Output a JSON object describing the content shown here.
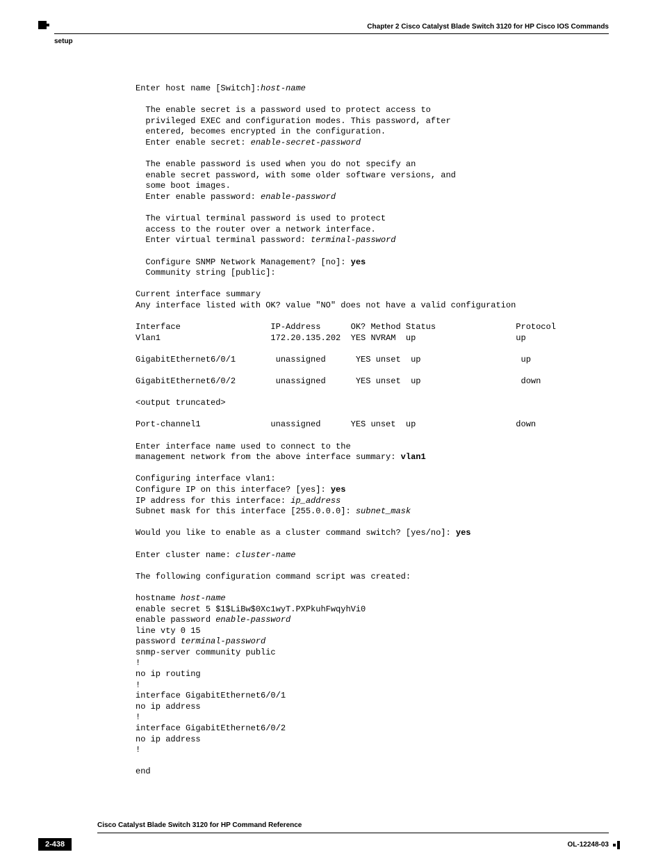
{
  "header": {
    "chapter": "Chapter 2  Cisco Catalyst Blade Switch 3120 for HP Cisco IOS Commands",
    "section": "setup"
  },
  "terminal": {
    "line1_prefix": "Enter host name [Switch]:",
    "line1_italic": "host-name",
    "para1_l1": "  The enable secret is a password used to protect access to",
    "para1_l2": "  privileged EXEC and configuration modes. This password, after",
    "para1_l3": "  entered, becomes encrypted in the configuration.",
    "para1_l4_prefix": "  Enter enable secret: ",
    "para1_l4_italic": "enable-secret-password",
    "para2_l1": "  The enable password is used when you do not specify an",
    "para2_l2": "  enable secret password, with some older software versions, and",
    "para2_l3": "  some boot images.",
    "para2_l4_prefix": "  Enter enable password: ",
    "para2_l4_italic": "enable-password",
    "para3_l1": "  The virtual terminal password is used to protect",
    "para3_l2": "  access to the router over a network interface.",
    "para3_l3_prefix": "  Enter virtual terminal password: ",
    "para3_l3_italic": "terminal-password",
    "snmp_l1_prefix": "  Configure SNMP Network Management? [no]: ",
    "snmp_l1_bold": "yes",
    "snmp_l2": "  Community string [public]: ",
    "summary_l1": "Current interface summary",
    "summary_l2": "Any interface listed with OK? value \"NO\" does not have a valid configuration",
    "table_header": "Interface                  IP-Address      OK? Method Status                Protocol",
    "table_vlan": "Vlan1                      172.20.135.202  YES NVRAM  up                    up",
    "table_ge1": "GigabitEthernet6/0/1        unassigned      YES unset  up                    up",
    "table_ge2": "GigabitEthernet6/0/2        unassigned      YES unset  up                    down",
    "truncated": "<output truncated>",
    "table_pc": "Port-channel1              unassigned      YES unset  up                    down",
    "iface_l1": "Enter interface name used to connect to the",
    "iface_l2_prefix": "management network from the above interface summary: ",
    "iface_l2_bold": "vlan1",
    "cfg_l1": "Configuring interface vlan1:",
    "cfg_l2_prefix": "Configure IP on this interface? [yes]: ",
    "cfg_l2_bold": "yes",
    "cfg_l3_prefix": "IP address for this interface: ",
    "cfg_l3_italic": "ip_address",
    "cfg_l4_prefix": "Subnet mask for this interface [255.0.0.0]: ",
    "cfg_l4_italic": "subnet_mask",
    "cluster_prefix": "Would you like to enable as a cluster command switch? [yes/no]: ",
    "cluster_bold": "yes",
    "clustername_prefix": "Enter cluster name: ",
    "clustername_italic": "cluster-name",
    "script_intro": "The following configuration command script was created:",
    "s1_prefix": "hostname ",
    "s1_italic": "host-name",
    "s2": "enable secret 5 $1$LiBw$0Xc1wyT.PXPkuhFwqyhVi0",
    "s3_prefix": "enable password ",
    "s3_italic": "enable-password",
    "s4": "line vty 0 15",
    "s5_prefix": "password ",
    "s5_italic": "terminal-password",
    "s6": "snmp-server community public",
    "s7": "!",
    "s8": "no ip routing",
    "s9": "!",
    "s10": "interface GigabitEthernet6/0/1",
    "s11": "no ip address",
    "s12": "!",
    "s13": "interface GigabitEthernet6/0/2",
    "s14": "no ip address",
    "s15": "!",
    "send": "end"
  },
  "footer": {
    "title": "Cisco Catalyst Blade Switch 3120 for HP Command Reference",
    "page": "2-438",
    "docid": "OL-12248-03"
  }
}
